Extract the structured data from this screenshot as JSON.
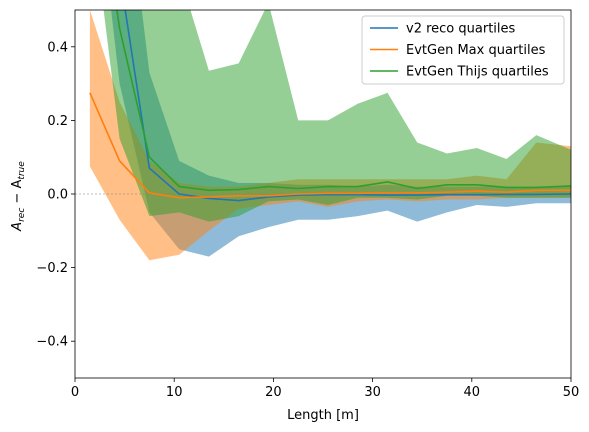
{
  "chart_data": {
    "type": "line",
    "xlabel": "Length [m]",
    "ylabel_main": "A",
    "ylabel_sub1": "rec",
    "ylabel_mid": " − A",
    "ylabel_sub2": "true",
    "xlim": [
      0,
      50
    ],
    "ylim": [
      -0.5,
      0.5
    ],
    "x_ticks": [
      0,
      10,
      20,
      30,
      40,
      50
    ],
    "x_tick_labels": [
      "0",
      "10",
      "20",
      "30",
      "40",
      "50"
    ],
    "y_ticks": [
      -0.4,
      -0.2,
      0.0,
      0.2,
      0.4
    ],
    "y_tick_labels": [
      "−0.4",
      "−0.2",
      "0.0",
      "0.2",
      "0.4"
    ],
    "grid": false,
    "reference_line_y": 0,
    "legend_position": "top-right",
    "x": [
      1.5,
      4.5,
      7.5,
      10.5,
      13.5,
      16.5,
      19.5,
      22.5,
      25.5,
      28.5,
      31.5,
      34.5,
      37.5,
      40.5,
      43.5,
      46.5,
      50
    ],
    "series": [
      {
        "name": "v2 reco quartiles",
        "color": "#1f77b4",
        "median": [
          1.2,
          0.6,
          0.07,
          0.0,
          -0.012,
          -0.018,
          -0.008,
          -0.003,
          -0.002,
          -0.002,
          -0.003,
          -0.003,
          -0.002,
          -0.002,
          -0.001,
          -0.001,
          0.0
        ],
        "lower": [
          1.0,
          0.3,
          -0.05,
          -0.15,
          -0.17,
          -0.115,
          -0.09,
          -0.07,
          -0.07,
          -0.06,
          -0.045,
          -0.075,
          -0.05,
          -0.03,
          -0.035,
          -0.025,
          -0.025
        ],
        "upper": [
          1.5,
          1.0,
          0.33,
          0.09,
          0.05,
          0.03,
          0.03,
          0.025,
          0.025,
          0.02,
          0.025,
          0.02,
          0.02,
          0.02,
          0.02,
          0.02,
          0.02
        ]
      },
      {
        "name": "EvtGen Max quartiles",
        "color": "#ff7f0e",
        "median": [
          0.275,
          0.09,
          0.003,
          -0.01,
          -0.008,
          -0.005,
          -0.005,
          0.0,
          0.002,
          0.002,
          0.003,
          0.003,
          0.005,
          0.008,
          0.005,
          0.01,
          0.01
        ],
        "lower": [
          0.075,
          -0.07,
          -0.18,
          -0.165,
          -0.1,
          -0.04,
          -0.03,
          -0.02,
          -0.035,
          -0.02,
          -0.015,
          -0.02,
          -0.015,
          -0.015,
          -0.01,
          -0.01,
          -0.01
        ],
        "upper": [
          0.5,
          0.25,
          0.09,
          0.03,
          0.02,
          0.02,
          0.03,
          0.04,
          0.04,
          0.04,
          0.04,
          0.04,
          0.04,
          0.05,
          0.04,
          0.14,
          0.13
        ]
      },
      {
        "name": "EvtGen Thijs quartiles",
        "color": "#2ca02c",
        "median": [
          1.0,
          0.45,
          0.1,
          0.02,
          0.01,
          0.012,
          0.02,
          0.015,
          0.02,
          0.02,
          0.033,
          0.015,
          0.025,
          0.025,
          0.018,
          0.018,
          0.022
        ],
        "lower": [
          0.8,
          0.15,
          -0.06,
          -0.05,
          -0.075,
          -0.06,
          -0.02,
          -0.015,
          -0.03,
          -0.01,
          -0.01,
          -0.015,
          -0.005,
          -0.005,
          -0.01,
          -0.01,
          -0.01
        ],
        "upper": [
          1.5,
          1.2,
          0.6,
          0.6,
          0.335,
          0.355,
          0.52,
          0.2,
          0.2,
          0.245,
          0.275,
          0.14,
          0.11,
          0.125,
          0.095,
          0.16,
          0.12
        ]
      }
    ]
  }
}
